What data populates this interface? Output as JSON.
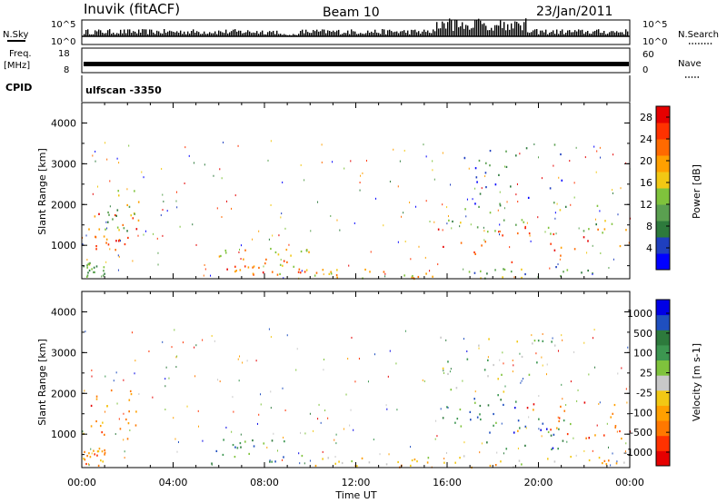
{
  "header": {
    "station": "Inuvik (fitACF)",
    "beam": "Beam 10",
    "date": "23/Jan/2011"
  },
  "strip_panels": {
    "nsky": {
      "label": "N.Sky",
      "ticks": [
        "10^5",
        "10^0"
      ]
    },
    "nsearch": {
      "label": "N.Search",
      "ticks": [
        "10^5",
        "10^0"
      ]
    },
    "freq": {
      "label": "Freq.",
      "unit": "[MHz]",
      "ticks": [
        "18",
        "8"
      ]
    },
    "nave": {
      "label": "Nave",
      "ticks": [
        "60",
        "0"
      ]
    },
    "cpid": {
      "label": "CPID",
      "value": "ulfscan -3350"
    }
  },
  "chart_data": [
    {
      "type": "heatmap",
      "name": "power",
      "ylabel": "Slant Range [km]",
      "xlabel": "Time UT",
      "x_ticks": [
        "00:00",
        "04:00",
        "08:00",
        "12:00",
        "16:00",
        "20:00",
        "00:00"
      ],
      "y_ticks": [
        "1000",
        "2000",
        "3000",
        "4000"
      ],
      "x_range_hours": [
        0,
        24
      ],
      "y_range_km": [
        180,
        4500
      ],
      "colorbar": {
        "label": "Power [dB]",
        "ticks": [
          "4",
          "8",
          "12",
          "16",
          "20",
          "24",
          "28"
        ],
        "range": [
          0,
          30
        ],
        "colors": [
          "#0000ff",
          "#1f3fbf",
          "#2d7a3c",
          "#5aa050",
          "#7fc33c",
          "#f2c814",
          "#ffa000",
          "#ff6a00",
          "#ff3200",
          "#e60000"
        ]
      },
      "regions": [
        {
          "t0": 0.0,
          "t1": 2.4,
          "r0": 900,
          "r1": 1800,
          "level": 0.78
        },
        {
          "t0": 1.0,
          "t1": 2.5,
          "r0": 1300,
          "r1": 2400,
          "level": 0.45
        },
        {
          "t0": 0.0,
          "t1": 1.0,
          "r0": 250,
          "r1": 600,
          "level": 0.35
        },
        {
          "t0": 5.5,
          "t1": 10.2,
          "r0": 250,
          "r1": 950,
          "level": 0.55
        },
        {
          "t0": 6.2,
          "t1": 9.8,
          "r0": 300,
          "r1": 650,
          "level": 0.8
        },
        {
          "t0": 10.0,
          "t1": 15.5,
          "r0": 200,
          "r1": 450,
          "level": 0.6
        },
        {
          "t0": 15.5,
          "t1": 24.0,
          "r0": 600,
          "r1": 1500,
          "level": 0.82
        },
        {
          "t0": 15.5,
          "t1": 24.0,
          "r0": 1300,
          "r1": 2000,
          "level": 0.45
        },
        {
          "t0": 15.5,
          "t1": 24.0,
          "r0": 200,
          "r1": 500,
          "level": 0.35
        },
        {
          "t0": 15.6,
          "t1": 21.0,
          "r0": 2000,
          "r1": 3500,
          "level": 0.2
        }
      ]
    },
    {
      "type": "heatmap",
      "name": "velocity",
      "ylabel": "Slant Range [km]",
      "xlabel": "Time UT",
      "x_ticks": [
        "00:00",
        "04:00",
        "08:00",
        "12:00",
        "16:00",
        "20:00",
        "00:00"
      ],
      "y_ticks": [
        "1000",
        "2000",
        "3000",
        "4000"
      ],
      "x_range_hours": [
        0,
        24
      ],
      "y_range_km": [
        180,
        4500
      ],
      "colorbar": {
        "label": "Velocity [m s-1]",
        "ticks": [
          "1000",
          "500",
          "100",
          "25",
          "-25",
          "-100",
          "-500",
          "-1000"
        ],
        "range": [
          -1000,
          1000
        ],
        "colors": [
          "#e60000",
          "#ff3200",
          "#ff7800",
          "#ffa000",
          "#f2c814",
          "#c8c8c8",
          "#7fc33c",
          "#3c9650",
          "#2d7a3c",
          "#1f4fbf",
          "#0000e6"
        ]
      },
      "regions": [
        {
          "t0": 0.0,
          "t1": 2.4,
          "r0": 900,
          "r1": 2400,
          "level": 0.2
        },
        {
          "t0": 0.0,
          "t1": 1.0,
          "r0": 250,
          "r1": 700,
          "level": 0.25
        },
        {
          "t0": 5.5,
          "t1": 10.2,
          "r0": 300,
          "r1": 900,
          "level": 0.75
        },
        {
          "t0": 10.0,
          "t1": 15.5,
          "r0": 200,
          "r1": 450,
          "level": 0.4
        },
        {
          "t0": 15.5,
          "t1": 19.0,
          "r0": 1200,
          "r1": 2000,
          "level": 0.78
        },
        {
          "t0": 19.0,
          "t1": 24.0,
          "r0": 900,
          "r1": 1800,
          "level": 0.22
        },
        {
          "t0": 17.5,
          "t1": 22.0,
          "r0": 600,
          "r1": 1400,
          "level": 0.78
        },
        {
          "t0": 15.5,
          "t1": 24.0,
          "r0": 200,
          "r1": 500,
          "level": 0.4
        },
        {
          "t0": 15.6,
          "t1": 21.0,
          "r0": 2000,
          "r1": 3400,
          "level": 0.55
        }
      ]
    }
  ]
}
